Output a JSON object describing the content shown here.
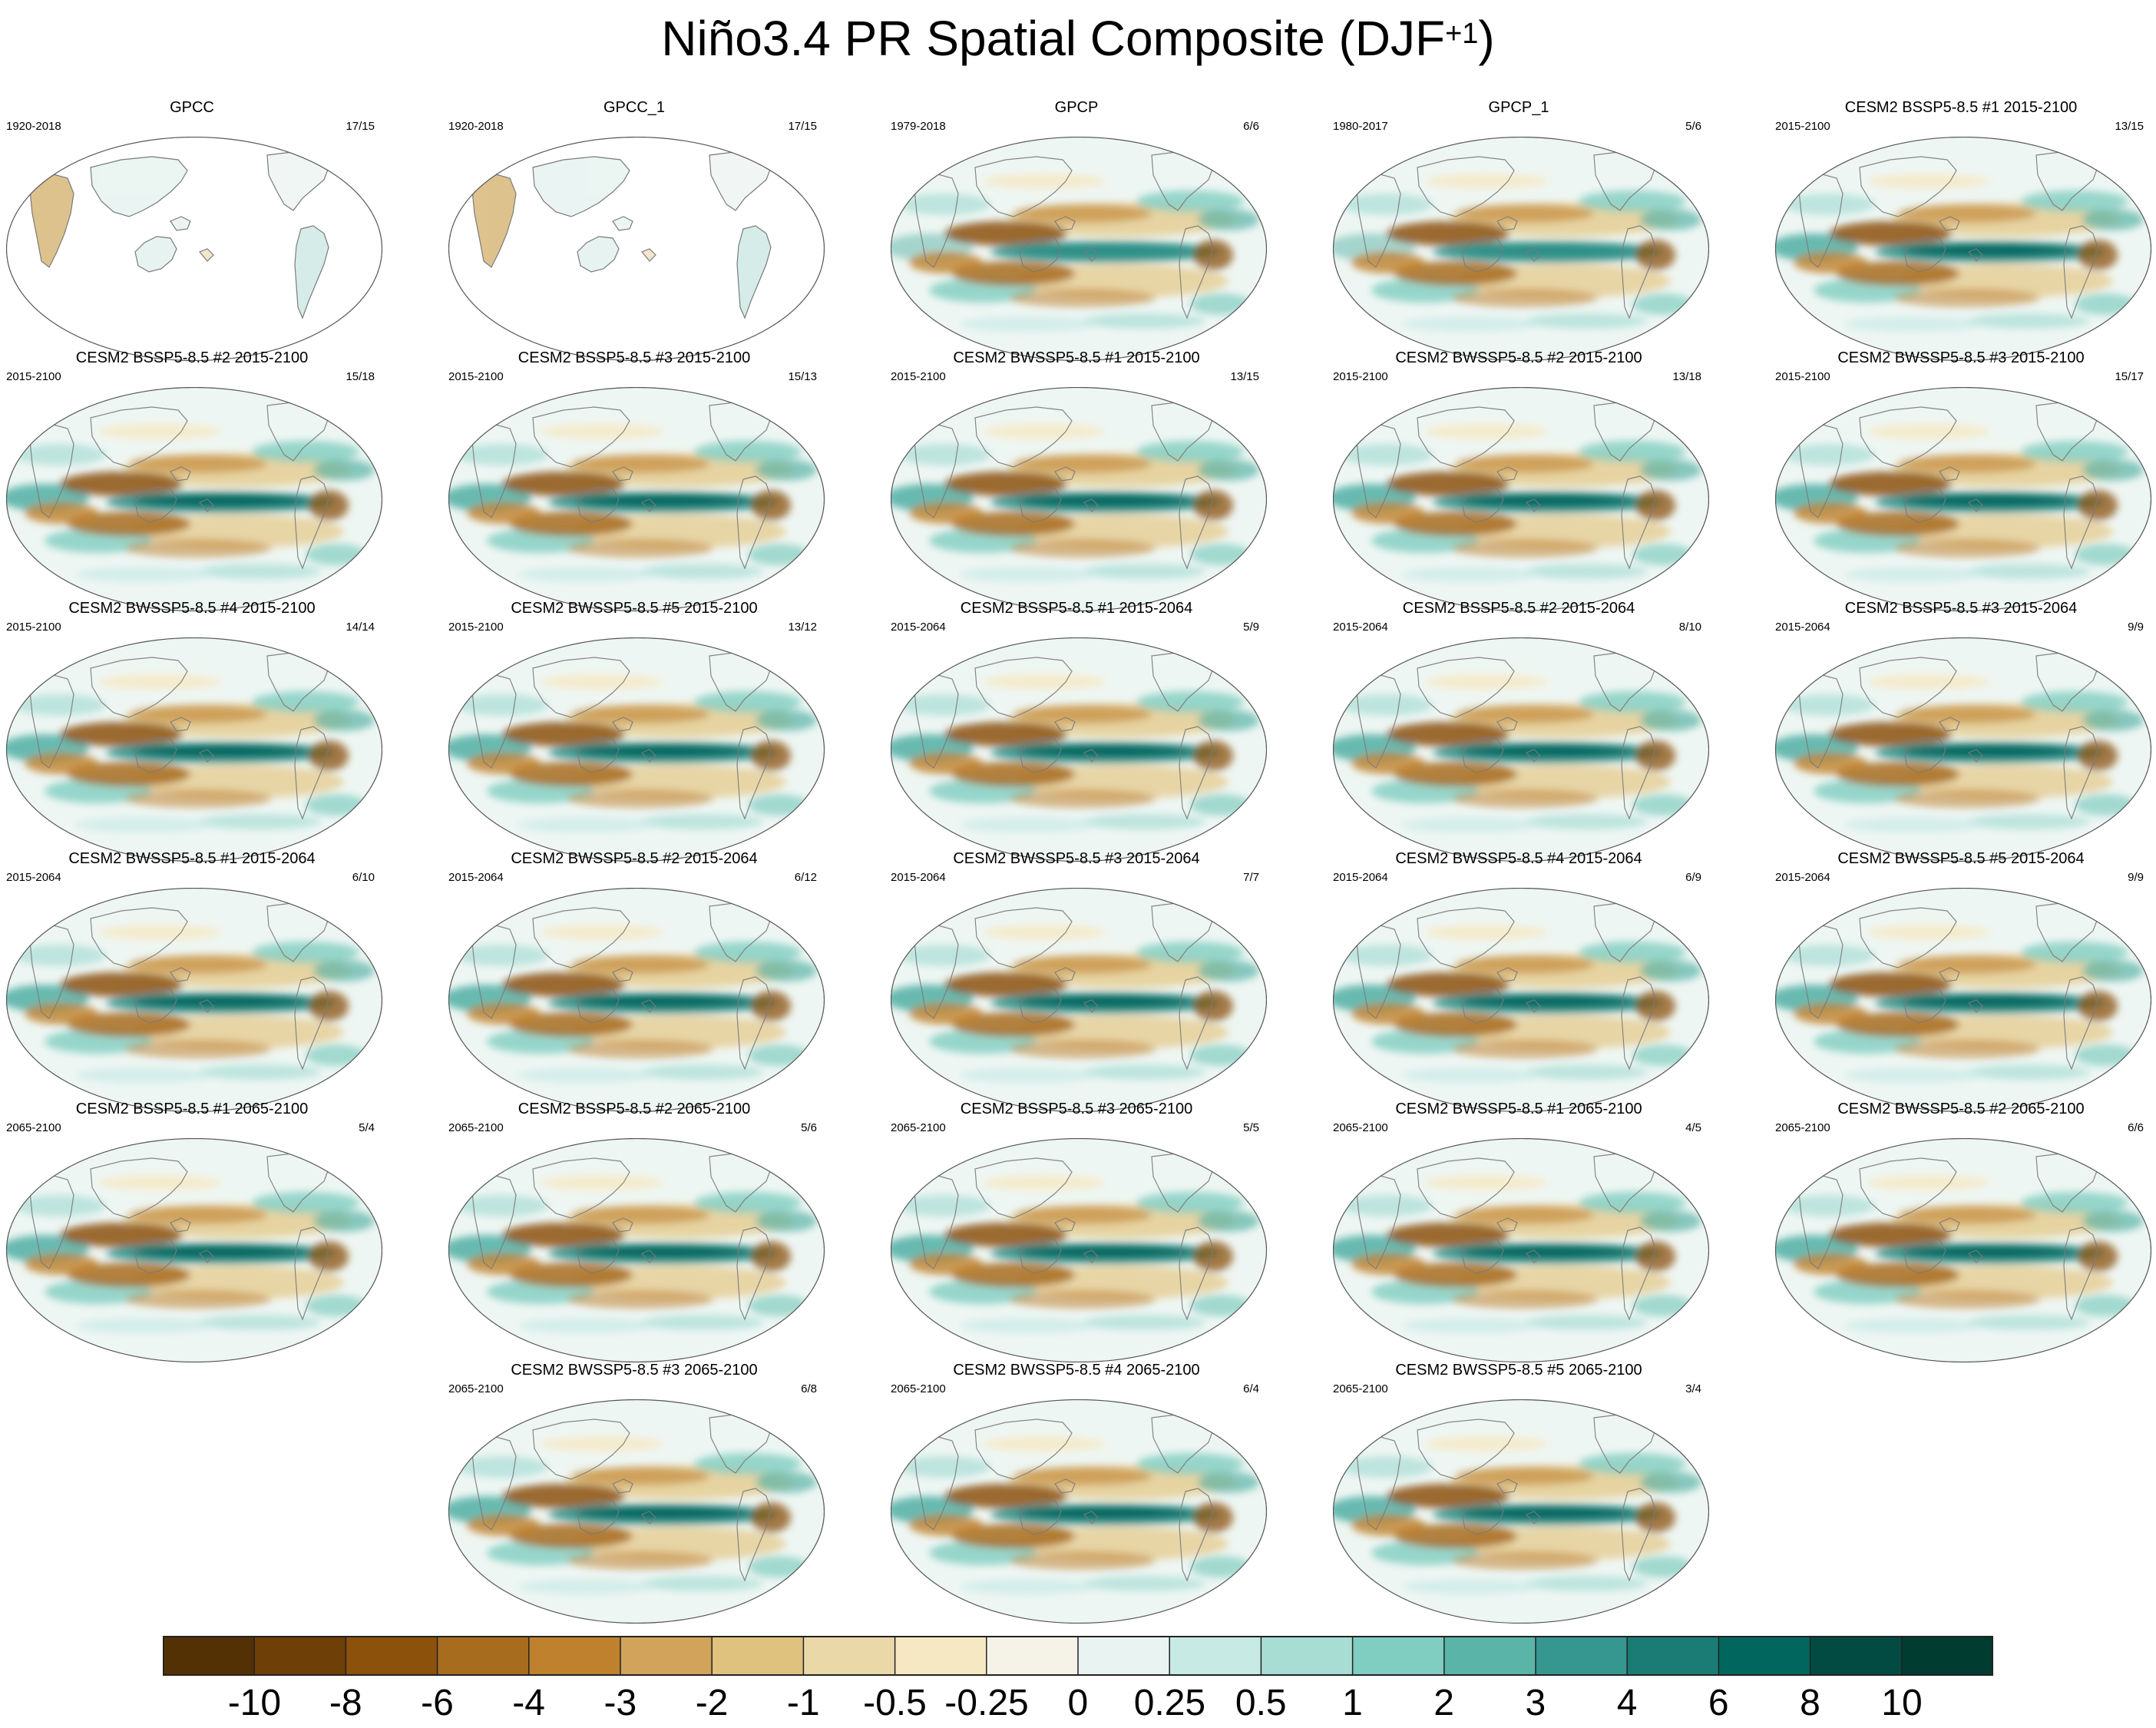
{
  "title": {
    "main": "Niño3.4 PR Spatial Composite (DJF",
    "superscript": "+1",
    "close": ")"
  },
  "panels": [
    {
      "title": "GPCC",
      "years": "1920-2018",
      "count": "17/15",
      "style": "obs"
    },
    {
      "title": "GPCC_1",
      "years": "1920-2018",
      "count": "17/15",
      "style": "obs"
    },
    {
      "title": "GPCP",
      "years": "1979-2018",
      "count": "6/6",
      "style": "gpcp"
    },
    {
      "title": "GPCP_1",
      "years": "1980-2017",
      "count": "5/6",
      "style": "gpcp"
    },
    {
      "title": "CESM2 BSSP5-8.5 #1 2015-2100",
      "years": "2015-2100",
      "count": "13/15",
      "style": "model"
    },
    {
      "title": "CESM2 BSSP5-8.5 #2 2015-2100",
      "years": "2015-2100",
      "count": "15/18",
      "style": "model"
    },
    {
      "title": "CESM2 BSSP5-8.5 #3 2015-2100",
      "years": "2015-2100",
      "count": "15/13",
      "style": "model"
    },
    {
      "title": "CESM2 BWSSP5-8.5 #1 2015-2100",
      "years": "2015-2100",
      "count": "13/15",
      "style": "model"
    },
    {
      "title": "CESM2 BWSSP5-8.5 #2 2015-2100",
      "years": "2015-2100",
      "count": "13/18",
      "style": "model"
    },
    {
      "title": "CESM2 BWSSP5-8.5 #3 2015-2100",
      "years": "2015-2100",
      "count": "15/17",
      "style": "model"
    },
    {
      "title": "CESM2 BWSSP5-8.5 #4 2015-2100",
      "years": "2015-2100",
      "count": "14/14",
      "style": "model"
    },
    {
      "title": "CESM2 BWSSP5-8.5 #5 2015-2100",
      "years": "2015-2100",
      "count": "13/12",
      "style": "model"
    },
    {
      "title": "CESM2 BSSP5-8.5 #1 2015-2064",
      "years": "2015-2064",
      "count": "5/9",
      "style": "model"
    },
    {
      "title": "CESM2 BSSP5-8.5 #2 2015-2064",
      "years": "2015-2064",
      "count": "8/10",
      "style": "model"
    },
    {
      "title": "CESM2 BSSP5-8.5 #3 2015-2064",
      "years": "2015-2064",
      "count": "9/9",
      "style": "model"
    },
    {
      "title": "CESM2 BWSSP5-8.5 #1 2015-2064",
      "years": "2015-2064",
      "count": "6/10",
      "style": "model"
    },
    {
      "title": "CESM2 BWSSP5-8.5 #2 2015-2064",
      "years": "2015-2064",
      "count": "6/12",
      "style": "model"
    },
    {
      "title": "CESM2 BWSSP5-8.5 #3 2015-2064",
      "years": "2015-2064",
      "count": "7/7",
      "style": "model"
    },
    {
      "title": "CESM2 BWSSP5-8.5 #4 2015-2064",
      "years": "2015-2064",
      "count": "6/9",
      "style": "model"
    },
    {
      "title": "CESM2 BWSSP5-8.5 #5 2015-2064",
      "years": "2015-2064",
      "count": "9/9",
      "style": "model"
    },
    {
      "title": "CESM2 BSSP5-8.5 #1 2065-2100",
      "years": "2065-2100",
      "count": "5/4",
      "style": "model"
    },
    {
      "title": "CESM2 BSSP5-8.5 #2 2065-2100",
      "years": "2065-2100",
      "count": "5/6",
      "style": "model"
    },
    {
      "title": "CESM2 BSSP5-8.5 #3 2065-2100",
      "years": "2065-2100",
      "count": "5/5",
      "style": "model"
    },
    {
      "title": "CESM2 BWSSP5-8.5 #1 2065-2100",
      "years": "2065-2100",
      "count": "4/5",
      "style": "model"
    },
    {
      "title": "CESM2 BWSSP5-8.5 #2 2065-2100",
      "years": "2065-2100",
      "count": "6/6",
      "style": "model"
    },
    {
      "title": "CESM2 BWSSP5-8.5 #3 2065-2100",
      "years": "2065-2100",
      "count": "6/8",
      "style": "model"
    },
    {
      "title": "CESM2 BWSSP5-8.5 #4 2065-2100",
      "years": "2065-2100",
      "count": "6/4",
      "style": "model"
    },
    {
      "title": "CESM2 BWSSP5-8.5 #5 2065-2100",
      "years": "2065-2100",
      "count": "3/4",
      "style": "model"
    }
  ],
  "colorbar": {
    "labels": [
      "-10",
      "-8",
      "-6",
      "-4",
      "-3",
      "-2",
      "-1",
      "-0.5",
      "-0.25",
      "0",
      "0.25",
      "0.5",
      "1",
      "2",
      "3",
      "4",
      "6",
      "8",
      "10"
    ],
    "colors": [
      "#543005",
      "#6f3f08",
      "#8c510a",
      "#a86c1f",
      "#bf812d",
      "#d1a35b",
      "#dfc27d",
      "#ebd8a9",
      "#f6e8c3",
      "#f5f2e8",
      "#e9f4f2",
      "#c7eae5",
      "#a8ddd4",
      "#80cdc1",
      "#5ab4a8",
      "#35978f",
      "#1a7c74",
      "#01665e",
      "#014b42",
      "#003c30"
    ]
  }
}
